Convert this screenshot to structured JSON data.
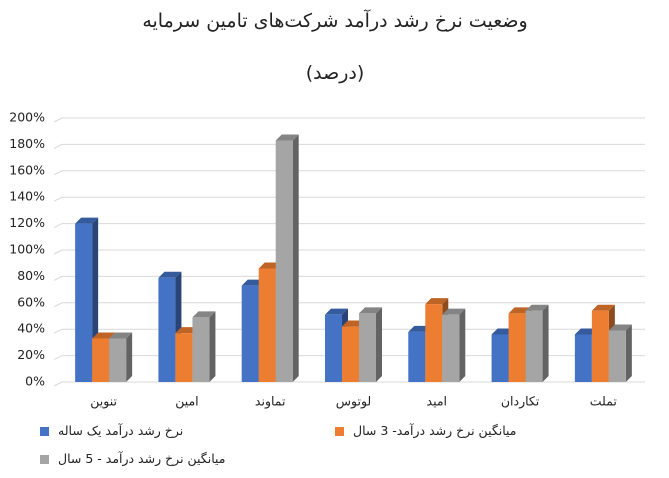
{
  "chart_data": {
    "type": "bar",
    "title": "وضعیت نرخ رشد درآمد شرکت‌های تامین سرمایه",
    "subtitle": "(درصد)",
    "categories": [
      "تنوین",
      "امین",
      "تماوند",
      "لوتوس",
      "امید",
      "تکاردان",
      "تملت"
    ],
    "series": [
      {
        "name": "نرخ رشد درآمد یک ساله",
        "color": "#4472c4",
        "values": [
          120,
          79,
          73,
          51,
          38,
          36,
          36
        ]
      },
      {
        "name": "میانگین نرخ رشد درآمد- 3 سال",
        "color": "#ed7d31",
        "values": [
          33,
          37,
          86,
          42,
          59,
          52,
          54
        ]
      },
      {
        "name": "میانگین نرخ رشد درآمد - 5 سال",
        "color": "#a5a5a5",
        "values": [
          33,
          49,
          183,
          52,
          51,
          54,
          39
        ]
      }
    ],
    "ylim": [
      0,
      200
    ],
    "yticks": [
      {
        "value": 0,
        "label": "0%"
      },
      {
        "value": 20,
        "label": "20%"
      },
      {
        "value": 40,
        "label": "40%"
      },
      {
        "value": 60,
        "label": "60%"
      },
      {
        "value": 80,
        "label": "80%"
      },
      {
        "value": 100,
        "label": "100%"
      },
      {
        "value": 120,
        "label": "120%"
      },
      {
        "value": 140,
        "label": "140%"
      },
      {
        "value": 160,
        "label": "160%"
      },
      {
        "value": 180,
        "label": "180%"
      },
      {
        "value": 200,
        "label": "200%"
      }
    ],
    "grid": true
  }
}
